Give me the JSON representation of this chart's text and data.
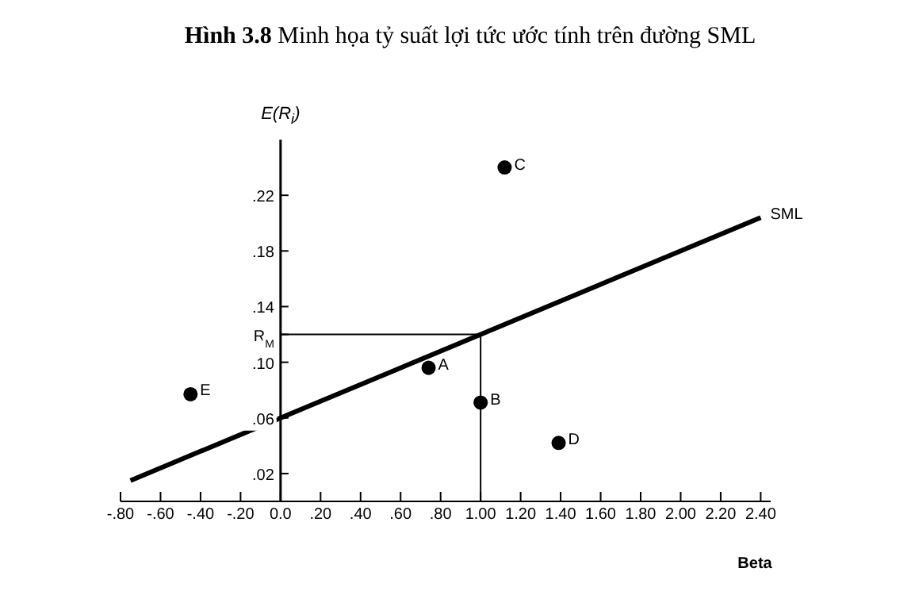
{
  "chart_data": {
    "type": "scatter",
    "title": "Hình 3.8 Minh họa tỷ suất lợi tức ước tính trên đường SML",
    "xlabel": "Beta",
    "ylabel": "E(R$_{i}$)",
    "series": [
      {
        "color": "#000000",
        "x": [
          0.74,
          1.0,
          1.12,
          1.39,
          -0.45
        ],
        "values": [
          0.096,
          0.071,
          0.24,
          0.042,
          0.077
        ]
      },
      {
        "type": "line",
        "name": "SML",
        "color": "#000000",
        "marker": "none",
        "x": [
          -0.75,
          2.4
        ],
        "values": [
          0.015,
          0.204
        ]
      }
    ],
    "annotations": [
      {
        "text": "A",
        "x": 0.74,
        "y": 0.096
      },
      {
        "text": "B",
        "x": 1.0,
        "y": 0.071
      },
      {
        "text": "C",
        "x": 1.12,
        "y": 0.24
      },
      {
        "text": "D",
        "x": 1.39,
        "y": 0.042
      },
      {
        "text": "E",
        "x": -0.45,
        "y": 0.077
      }
    ],
    "ref_lines": [
      {
        "axis": "y",
        "value": 0.12,
        "color": "#000000"
      },
      {
        "axis": "x",
        "value": 1.0,
        "color": "#000000"
      }
    ],
    "xlim": [
      -0.8,
      2.45
    ],
    "ylim": [
      0,
      0.26
    ],
    "xticks": [
      {
        "value": -0.8,
        "label": "-.80"
      },
      {
        "value": -0.6,
        "label": "-.60"
      },
      {
        "value": -0.4,
        "label": "-.40"
      },
      {
        "value": -0.2,
        "label": "-.20"
      },
      {
        "value": 0,
        "label": "0.0"
      },
      {
        "value": 0.2,
        "label": ".20"
      },
      {
        "value": 0.4,
        "label": ".40"
      },
      {
        "value": 0.6,
        "label": ".60"
      },
      {
        "value": 0.8,
        "label": ".80"
      },
      {
        "value": 1.0,
        "label": "1.00"
      },
      {
        "value": 1.2,
        "label": "1.20"
      },
      {
        "value": 1.4,
        "label": "1.40"
      },
      {
        "value": 1.6,
        "label": "1.60"
      },
      {
        "value": 1.8,
        "label": "1.80"
      },
      {
        "value": 2.0,
        "label": "2.00"
      },
      {
        "value": 2.2,
        "label": "2.20"
      },
      {
        "value": 2.4,
        "label": "2.40"
      }
    ],
    "yticks": [
      {
        "value": 0.02,
        "label": ".02"
      },
      {
        "value": 0.06,
        "label": ".06"
      },
      {
        "value": 0.1,
        "label": ".10"
      },
      {
        "value": 0.12,
        "label": "R$_{M}$"
      },
      {
        "value": 0.14,
        "label": ".14"
      },
      {
        "value": 0.18,
        "label": ".18"
      },
      {
        "value": 0.22,
        "label": ".22"
      }
    ],
    "grid": false,
    "legend": false,
    "marker": "circle",
    "line_style": "solid"
  }
}
